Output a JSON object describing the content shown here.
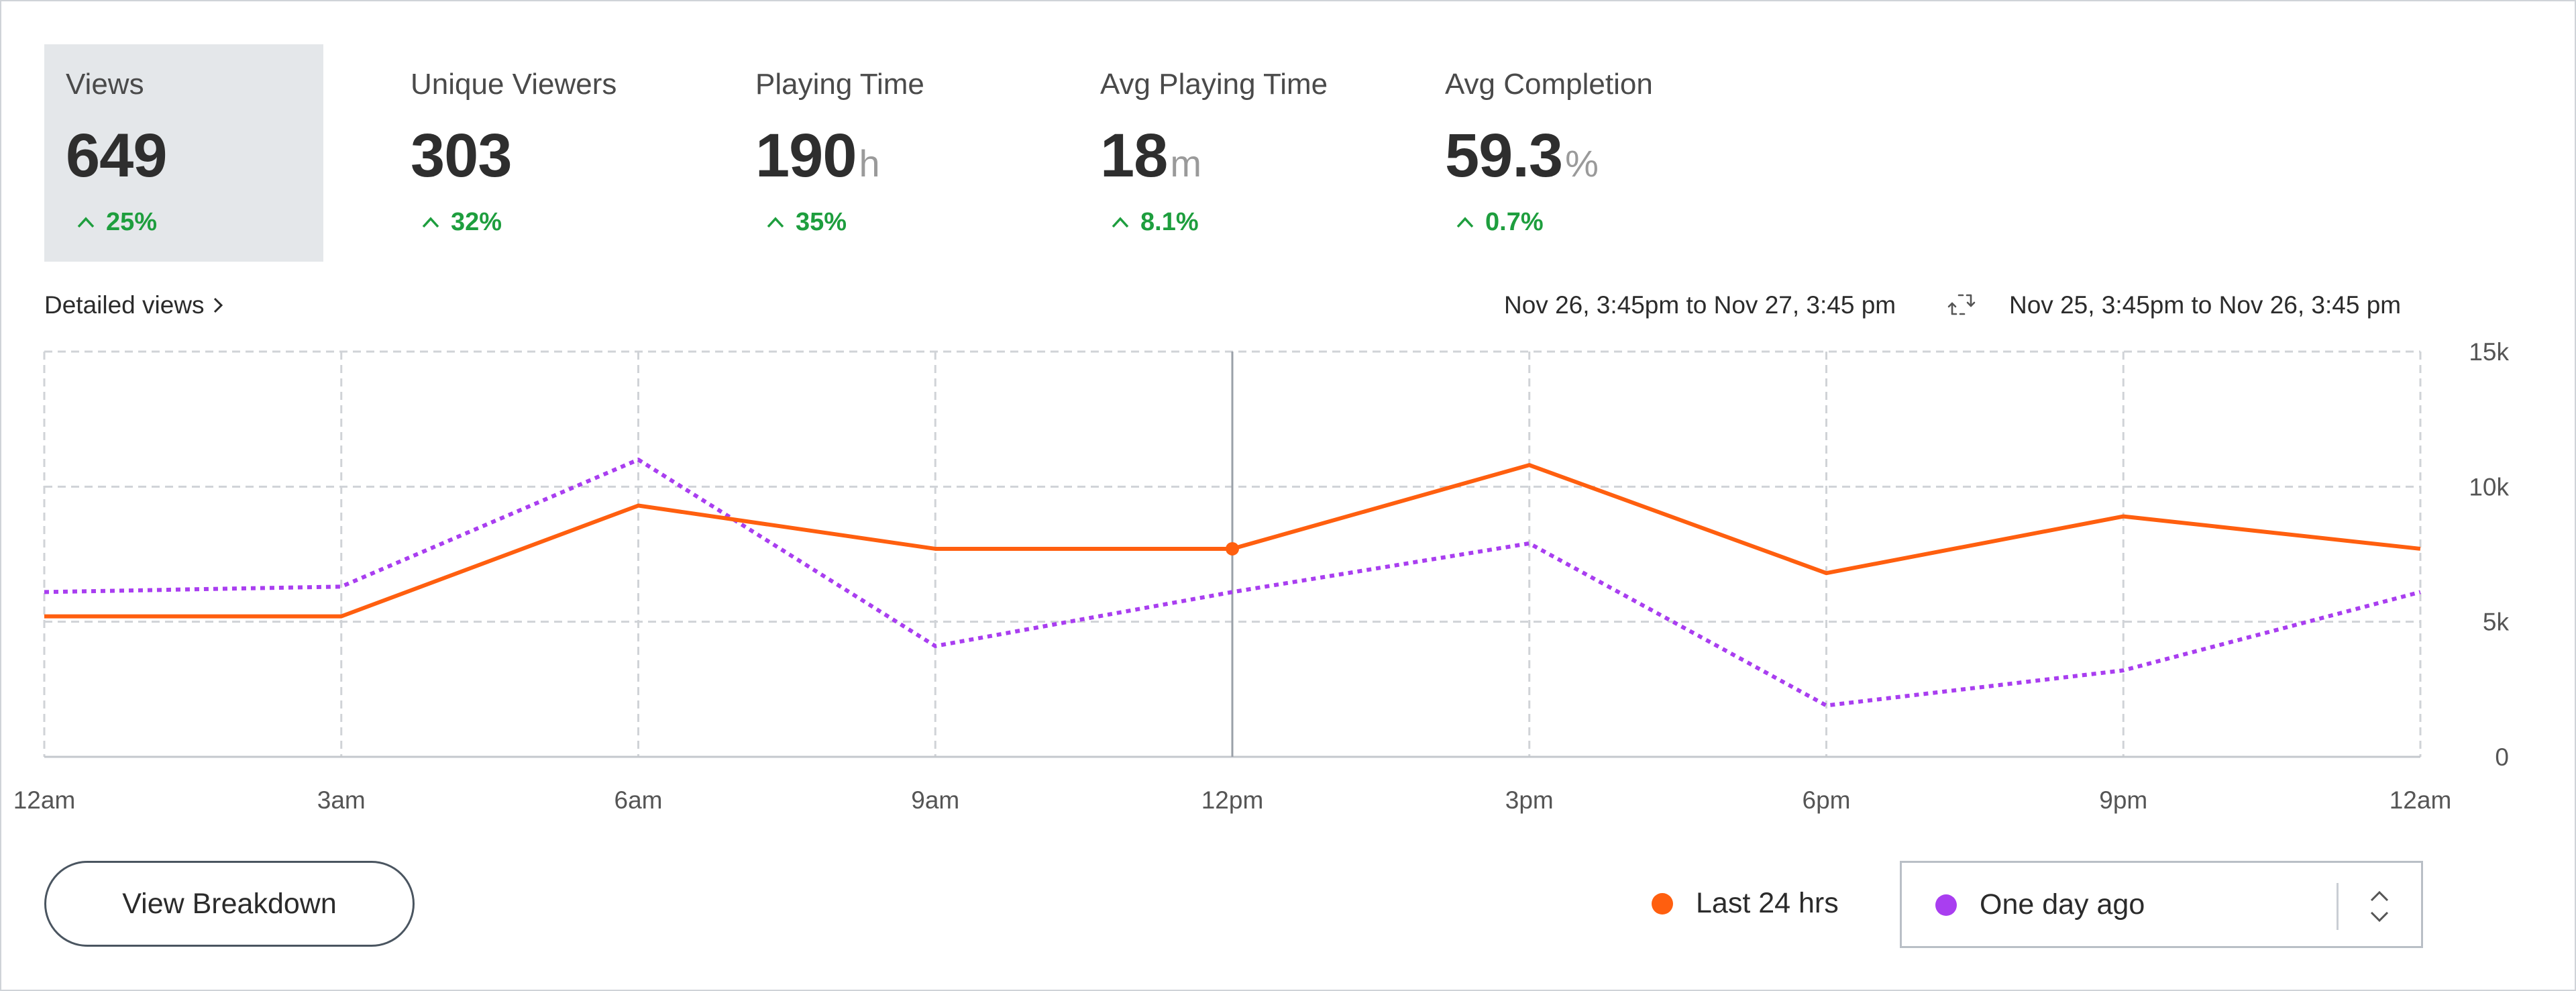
{
  "metrics": [
    {
      "label": "Views",
      "value": "649",
      "unit": "",
      "delta": "25%",
      "selected": true
    },
    {
      "label": "Unique Viewers",
      "value": "303",
      "unit": "",
      "delta": "32%",
      "selected": false
    },
    {
      "label": "Playing Time",
      "value": "190",
      "unit": "h",
      "delta": "35%",
      "selected": false
    },
    {
      "label": "Avg Playing Time",
      "value": "18",
      "unit": "m",
      "delta": "8.1%",
      "selected": false
    },
    {
      "label": "Avg Completion",
      "value": "59.3",
      "unit": "%",
      "delta": "0.7%",
      "selected": false
    }
  ],
  "links": {
    "detailed_views": "Detailed views"
  },
  "date_ranges": {
    "current": "Nov 26, 3:45pm to Nov 27, 3:45 pm",
    "compare": "Nov 25, 3:45pm to Nov 26, 3:45 pm",
    "swap_icon": "swap-icon"
  },
  "colors": {
    "current": "#ff5f0f",
    "compare": "#a93ef0",
    "delta_positive": "#1e9e3e",
    "selected_tile": "#e4e7ea"
  },
  "chart_data": {
    "type": "line",
    "x": [
      "12am",
      "3am",
      "6am",
      "9am",
      "12pm",
      "3pm",
      "6pm",
      "9pm",
      "12am"
    ],
    "y_ticks": [
      "15k",
      "10k",
      "5k",
      "0"
    ],
    "ylim": [
      0,
      15000
    ],
    "series": [
      {
        "name": "Last 24 hrs",
        "style": "solid",
        "values": [
          5200,
          5200,
          9300,
          7700,
          7700,
          10800,
          6800,
          8900,
          7700
        ]
      },
      {
        "name": "One day ago",
        "style": "dotted",
        "values": [
          6100,
          6300,
          11000,
          4100,
          6100,
          7900,
          1900,
          3200,
          6100
        ]
      }
    ],
    "hover_index": 4
  },
  "buttons": {
    "view_breakdown": "View Breakdown"
  },
  "legend": {
    "current": "Last 24 hrs",
    "compare_select_value": "One day ago"
  }
}
